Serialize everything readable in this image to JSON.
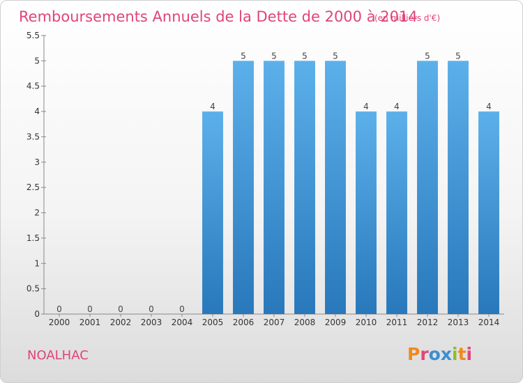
{
  "chart_data": {
    "type": "bar",
    "title": "Remboursements Annuels de la Dette de 2000 à 2014",
    "subtitle": "(en milliers d'€)",
    "xlabel": "",
    "ylabel": "",
    "categories": [
      "2000",
      "2001",
      "2002",
      "2003",
      "2004",
      "2005",
      "2006",
      "2007",
      "2008",
      "2009",
      "2010",
      "2011",
      "2012",
      "2013",
      "2014"
    ],
    "values": [
      0,
      0,
      0,
      0,
      0,
      4,
      5,
      5,
      5,
      5,
      4,
      4,
      5,
      5,
      4
    ],
    "data_labels": [
      "0",
      "0",
      "0",
      "0",
      "0",
      "4",
      "5",
      "5",
      "5",
      "5",
      "4",
      "4",
      "5",
      "5",
      "4"
    ],
    "yticks": [
      "0",
      "0.5",
      "1",
      "1.5",
      "2",
      "2.5",
      "3",
      "3.5",
      "4",
      "4.5",
      "5",
      "5.5"
    ],
    "ylim": [
      0,
      5.5
    ],
    "grid": false,
    "legend": "none",
    "bar_color": "#3a8fd0"
  },
  "footer": {
    "commune": "NOALHAC",
    "logo_text": "Proxiti"
  },
  "colors": {
    "title": "#e0447a",
    "logo_letters": [
      "#f08a1c",
      "#e0447a",
      "#3a8fd0",
      "#3a8fd0",
      "#8bbf2a",
      "#f08a1c",
      "#e0447a"
    ]
  }
}
